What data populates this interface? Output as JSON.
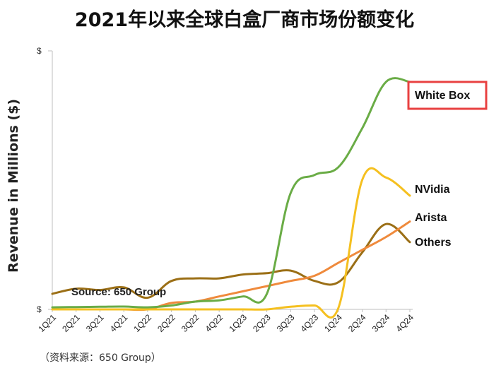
{
  "page_title": "2021年以来全球白盒厂商市场份额变化",
  "footer": "（资料来源：650 Group）",
  "chart_data": {
    "type": "line",
    "ylabel": "Revenue in Millions ($)",
    "y_ticks": [
      "$",
      "$"
    ],
    "ylim": [
      0,
      100
    ],
    "annotation": "Source: 650 Group",
    "categories": [
      "1Q21",
      "2Q21",
      "3Q21",
      "4Q21",
      "1Q22",
      "2Q22",
      "3Q22",
      "4Q22",
      "1Q23",
      "2Q23",
      "3Q23",
      "4Q23",
      "1Q24",
      "2Q24",
      "3Q24",
      "4Q24"
    ],
    "highlighted_series": "White Box",
    "series": [
      {
        "name": "White Box",
        "color": "#6aac46",
        "values": [
          0.8,
          0.9,
          1.0,
          1.1,
          0.8,
          1.5,
          3.0,
          3.5,
          5.0,
          6.0,
          45.0,
          52.0,
          55.0,
          70.0,
          88.0,
          88.0
        ]
      },
      {
        "name": "NVidia",
        "color": "#f5c020",
        "values": [
          0,
          0,
          0,
          0,
          0,
          0,
          0,
          0,
          0,
          0,
          1.0,
          1.5,
          0.5,
          50.0,
          51.0,
          44.0
        ]
      },
      {
        "name": "Arista",
        "color": "#ef8a3c",
        "values": [
          0,
          0,
          0,
          0,
          0,
          2.5,
          3.0,
          5.0,
          7.0,
          9.0,
          11.0,
          13.0,
          18.0,
          23.0,
          28.0,
          34.0
        ]
      },
      {
        "name": "Others",
        "color": "#9b6f16",
        "values": [
          6.0,
          8.0,
          7.5,
          8.5,
          4.5,
          11.0,
          12.0,
          12.0,
          13.5,
          14.0,
          15.0,
          11.0,
          10.5,
          22.0,
          33.0,
          26.0
        ]
      }
    ]
  }
}
